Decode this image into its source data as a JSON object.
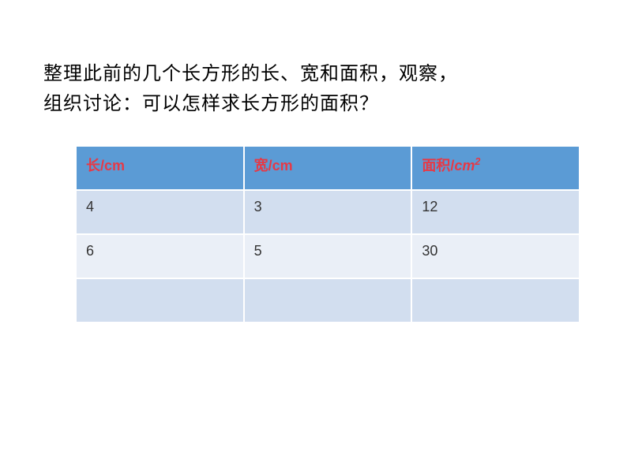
{
  "question": {
    "line1": "整理此前的几个长方形的长、宽和面积，观察，",
    "line2": "组织讨论：可以怎样求长方形的面积？"
  },
  "table": {
    "headers": {
      "length_label": "长",
      "length_unit": "/cm",
      "width_label": "宽",
      "width_unit": "/cm",
      "area_label": "面积",
      "area_unit_prefix": "/",
      "area_unit_base": "cm",
      "area_unit_exp": "2"
    },
    "rows": [
      {
        "length": "4",
        "width": "3",
        "area": "12"
      },
      {
        "length": "6",
        "width": "5",
        "area": "30"
      },
      {
        "length": "",
        "width": "",
        "area": ""
      }
    ],
    "colors": {
      "header_bg": "#5b9bd5",
      "header_text": "#e63946",
      "row_even_bg": "#d2deef",
      "row_odd_bg": "#eaeff7",
      "cell_text": "#333333",
      "border": "#ffffff"
    }
  }
}
